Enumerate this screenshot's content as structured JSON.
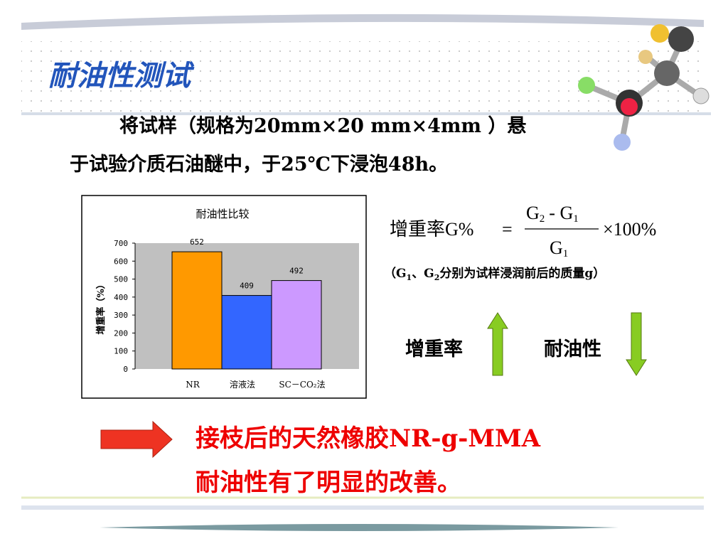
{
  "title": "耐油性测试",
  "body": {
    "line1": "将试样（规格为20mm×20 mm×4mm ）悬",
    "line2": "于试验介质石油醚中，于25℃下浸泡48h。"
  },
  "formula": {
    "label": "增重率G%",
    "equals": "=",
    "numerator": {
      "a": "G",
      "a_sub": "2",
      "op": "- G",
      "b_sub": "1"
    },
    "denominator": {
      "base": "G",
      "sub": "1"
    },
    "factor": "×100%"
  },
  "note": {
    "open": "（G",
    "sub1": "1",
    "mid": "、G",
    "sub2": "2",
    "rest": "分别为试样浸润前后的质量g）"
  },
  "indicators": {
    "up": "增重率",
    "down": "耐油性"
  },
  "conclusion": {
    "line1": "接枝后的天然橡胶NR-g-MMA",
    "line2": "耐油性有了明显的改善。"
  },
  "chart_data": {
    "type": "bar",
    "title": "耐油性比较",
    "y_label": "增重率（%）",
    "categories": [
      "NR",
      "溶液法",
      "SC－CO₂法"
    ],
    "series": [
      {
        "values": [
          652,
          409,
          492
        ],
        "colors": [
          "#ff9900",
          "#3366ff",
          "#cc99ff"
        ]
      }
    ],
    "ylim": [
      0,
      700
    ],
    "yticks": [
      0,
      100,
      200,
      300,
      400,
      500,
      600,
      700
    ],
    "plot_background": "#c0c0c0"
  }
}
